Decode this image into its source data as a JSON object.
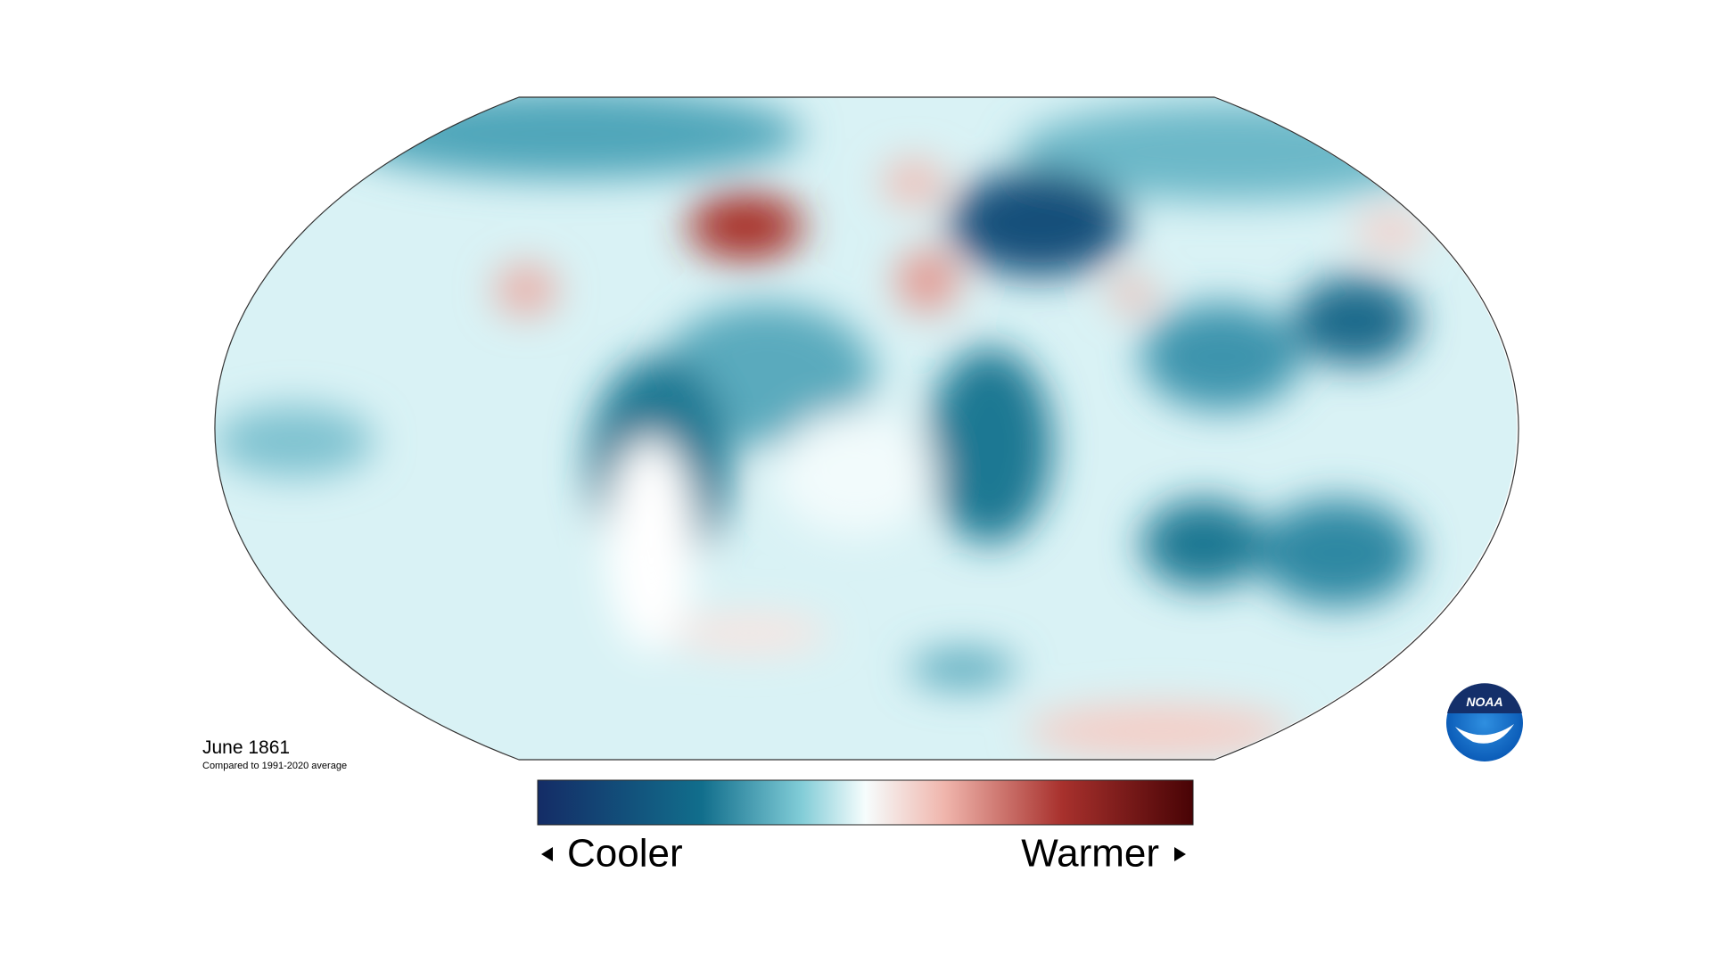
{
  "map": {
    "title": "June 1861",
    "subtitle": "Compared to 1991-2020 average",
    "legend": {
      "low": "Cooler",
      "high": "Warmer"
    },
    "logo": "NOAA"
  }
}
